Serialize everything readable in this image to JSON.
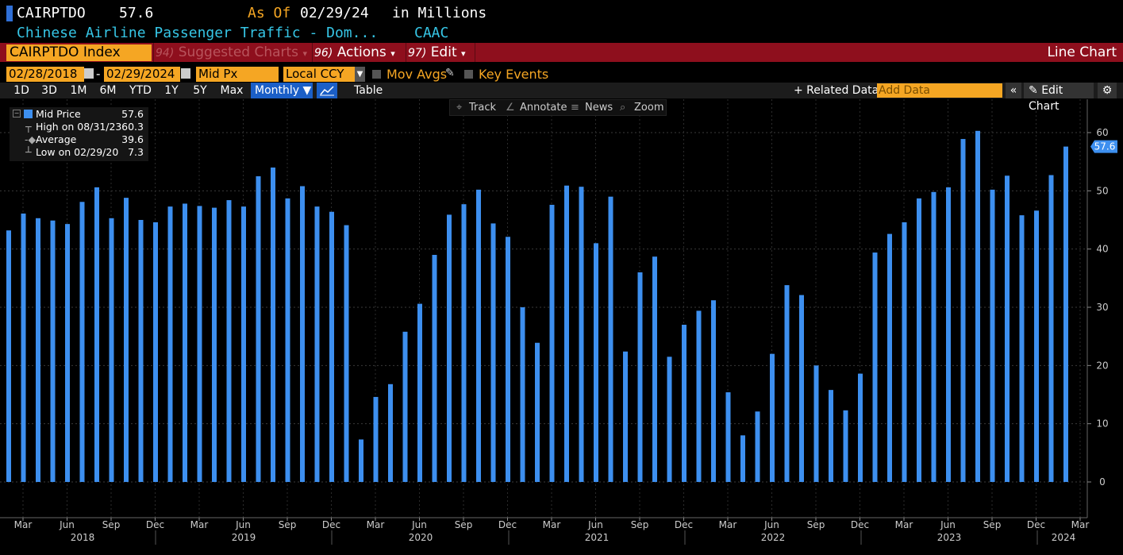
{
  "header": {
    "ticker": "CAIRPTDO",
    "last_price": "57.6",
    "as_of_label": "As Of",
    "as_of_date": "02/29/24",
    "units": "in Millions",
    "description": "Chinese Airline Passenger Traffic - Dom...",
    "source": "CAAC"
  },
  "menu": {
    "security": "CAIRPTDO Index",
    "suggested_num": "94)",
    "suggested": "Suggested Charts",
    "actions_num": "96)",
    "actions": "Actions",
    "edit_num": "97)",
    "edit": "Edit",
    "chart_type": "Line Chart"
  },
  "controls": {
    "start_date": "02/28/2018",
    "date_sep": "-",
    "end_date": "02/29/2024",
    "field": "Mid Px",
    "currency": "Local CCY",
    "mov_avgs": "Mov Avgs",
    "key_events": "Key Events"
  },
  "periods": [
    "1D",
    "3D",
    "1M",
    "6M",
    "YTD",
    "1Y",
    "5Y",
    "Max"
  ],
  "toolbar": {
    "frequency": "Monthly ▼",
    "table": "Table",
    "related": "+ Related Data",
    "add_data_placeholder": "Add Data",
    "collapse": "«",
    "edit_chart": "Edit Chart",
    "settings_icon": "gear-icon"
  },
  "chart_tools": {
    "track": "Track",
    "annotate": "Annotate",
    "news": "News",
    "zoom": "Zoom"
  },
  "legend": {
    "mid_label": "Mid Price",
    "mid_value": "57.6",
    "high_label": "High on 08/31/23",
    "high_value": "60.3",
    "avg_label": "Average",
    "avg_value": "39.6",
    "low_label": "Low on 02/29/20",
    "low_value": "7.3"
  },
  "colors": {
    "bar": "#3d8fef",
    "accent": "#f5a623",
    "menu_bar": "#8e0f1d",
    "cyan": "#36c6e6"
  },
  "chart_data": {
    "type": "bar",
    "title": "",
    "ylabel": "",
    "ylim": [
      -6,
      63
    ],
    "yticks": [
      0,
      10,
      20,
      30,
      40,
      50,
      60
    ],
    "last_value_label": "57.6",
    "x": [
      "2018-02",
      "2018-03",
      "2018-04",
      "2018-05",
      "2018-06",
      "2018-07",
      "2018-08",
      "2018-09",
      "2018-10",
      "2018-11",
      "2018-12",
      "2019-01",
      "2019-02",
      "2019-03",
      "2019-04",
      "2019-05",
      "2019-06",
      "2019-07",
      "2019-08",
      "2019-09",
      "2019-10",
      "2019-11",
      "2019-12",
      "2020-01",
      "2020-02",
      "2020-03",
      "2020-04",
      "2020-05",
      "2020-06",
      "2020-07",
      "2020-08",
      "2020-09",
      "2020-10",
      "2020-11",
      "2020-12",
      "2021-01",
      "2021-02",
      "2021-03",
      "2021-04",
      "2021-05",
      "2021-06",
      "2021-07",
      "2021-08",
      "2021-09",
      "2021-10",
      "2021-11",
      "2021-12",
      "2022-01",
      "2022-02",
      "2022-03",
      "2022-04",
      "2022-05",
      "2022-06",
      "2022-07",
      "2022-08",
      "2022-09",
      "2022-10",
      "2022-11",
      "2022-12",
      "2023-01",
      "2023-02",
      "2023-03",
      "2023-04",
      "2023-05",
      "2023-06",
      "2023-07",
      "2023-08",
      "2023-09",
      "2023-10",
      "2023-11",
      "2023-12",
      "2024-01",
      "2024-02"
    ],
    "values": [
      43.2,
      46.1,
      45.3,
      44.9,
      44.3,
      48.1,
      50.6,
      45.3,
      48.8,
      45.0,
      44.6,
      47.3,
      47.8,
      47.4,
      47.1,
      48.4,
      47.3,
      52.5,
      54.0,
      48.7,
      50.8,
      47.3,
      46.4,
      44.1,
      7.3,
      14.6,
      16.8,
      25.8,
      30.6,
      39.0,
      45.9,
      47.7,
      50.2,
      44.4,
      42.1,
      30.0,
      23.9,
      47.6,
      50.9,
      50.7,
      41.0,
      49.0,
      22.4,
      36.0,
      38.7,
      21.5,
      27.0,
      29.4,
      31.2,
      15.4,
      8.0,
      12.1,
      22.0,
      33.8,
      32.1,
      20.0,
      15.8,
      12.3,
      18.6,
      39.4,
      42.6,
      44.6,
      48.7,
      49.8,
      50.6,
      58.9,
      60.3,
      50.2,
      52.6,
      45.8,
      46.6,
      52.7,
      57.6
    ],
    "x_month_labels": [
      "Mar",
      "Jun",
      "Sep",
      "Dec",
      "Mar",
      "Jun",
      "Sep",
      "Dec",
      "Mar",
      "Jun",
      "Sep",
      "Dec",
      "Mar",
      "Jun",
      "Sep",
      "Dec",
      "Mar",
      "Jun",
      "Sep",
      "Dec",
      "Mar",
      "Jun",
      "Sep",
      "Dec",
      "Mar"
    ],
    "x_year_labels": [
      "2018",
      "2019",
      "2020",
      "2021",
      "2022",
      "2023",
      "2024"
    ]
  }
}
